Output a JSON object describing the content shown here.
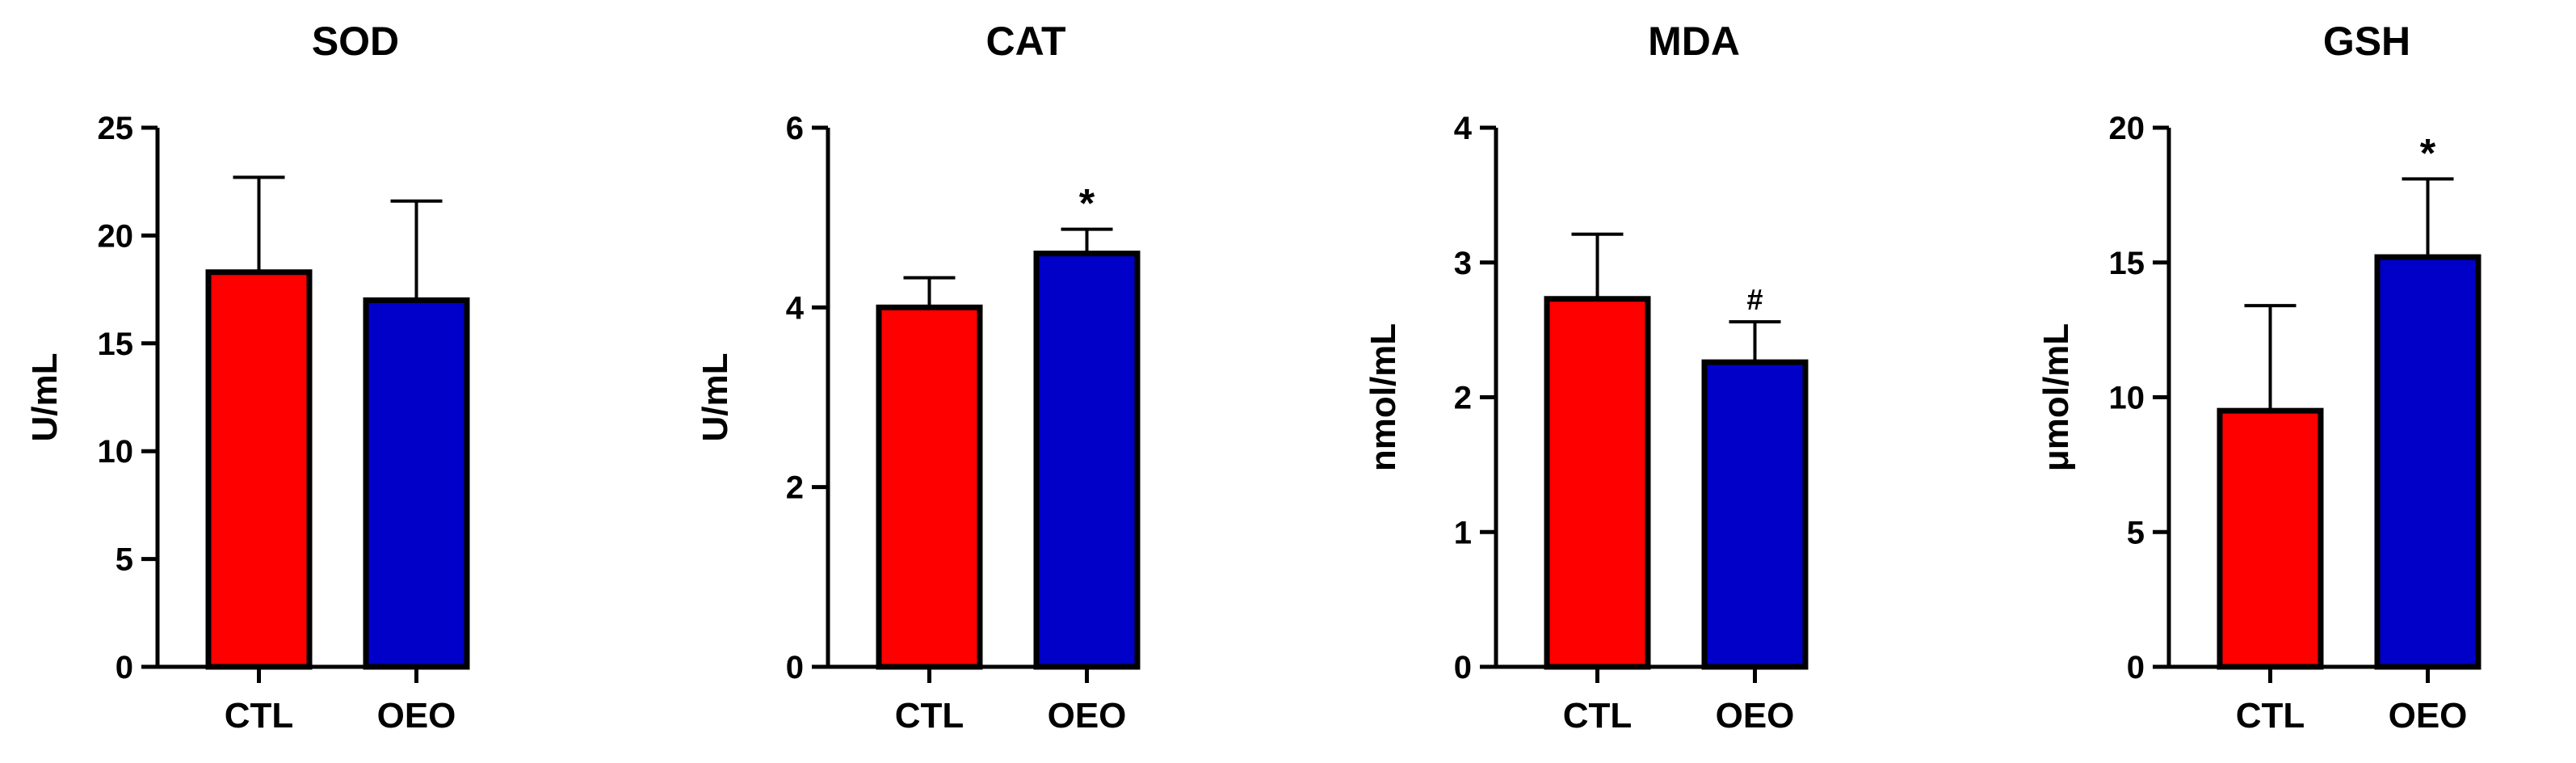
{
  "figure": {
    "colors": {
      "ctl": "#ff0000",
      "oeo": "#0000c8",
      "axis": "#000000"
    }
  },
  "chart_data": [
    {
      "type": "bar",
      "title": "SOD",
      "ylabel": "U/mL",
      "xlabel": "",
      "categories": [
        "CTL",
        "OEO"
      ],
      "values": [
        18.3,
        17.0
      ],
      "errors": [
        4.4,
        4.6
      ],
      "ylim": [
        0,
        25
      ],
      "yticks": [
        0,
        5,
        10,
        15,
        20,
        25
      ],
      "ytick_labels": [
        "0",
        "5",
        "10",
        "15",
        "20",
        "25"
      ],
      "annotations": [
        "",
        ""
      ]
    },
    {
      "type": "bar",
      "title": "CAT",
      "ylabel": "U/mL",
      "xlabel": "",
      "categories": [
        "CTL",
        "OEO"
      ],
      "values": [
        4.0,
        4.6
      ],
      "errors": [
        0.33,
        0.27
      ],
      "ylim": [
        0,
        6
      ],
      "yticks": [
        0,
        2,
        4,
        6
      ],
      "ytick_labels": [
        "0",
        "2",
        "4",
        "6"
      ],
      "annotations": [
        "",
        "*"
      ]
    },
    {
      "type": "bar",
      "title": "MDA",
      "ylabel": "nmol/mL",
      "xlabel": "",
      "categories": [
        "CTL",
        "OEO"
      ],
      "values": [
        2.73,
        2.26
      ],
      "errors": [
        0.48,
        0.3
      ],
      "ylim": [
        0,
        4
      ],
      "yticks": [
        0,
        1,
        2,
        3,
        4
      ],
      "ytick_labels": [
        "0",
        "1",
        "2",
        "3",
        "4"
      ],
      "annotations": [
        "",
        "#"
      ]
    },
    {
      "type": "bar",
      "title": "GSH",
      "ylabel": "μmol/mL",
      "xlabel": "",
      "categories": [
        "CTL",
        "OEO"
      ],
      "values": [
        9.5,
        15.2
      ],
      "errors": [
        3.9,
        2.9
      ],
      "ylim": [
        0,
        20
      ],
      "yticks": [
        0,
        5,
        10,
        15,
        20
      ],
      "ytick_labels": [
        "0",
        "5",
        "10",
        "15",
        "20"
      ],
      "annotations": [
        "",
        "*"
      ]
    }
  ]
}
